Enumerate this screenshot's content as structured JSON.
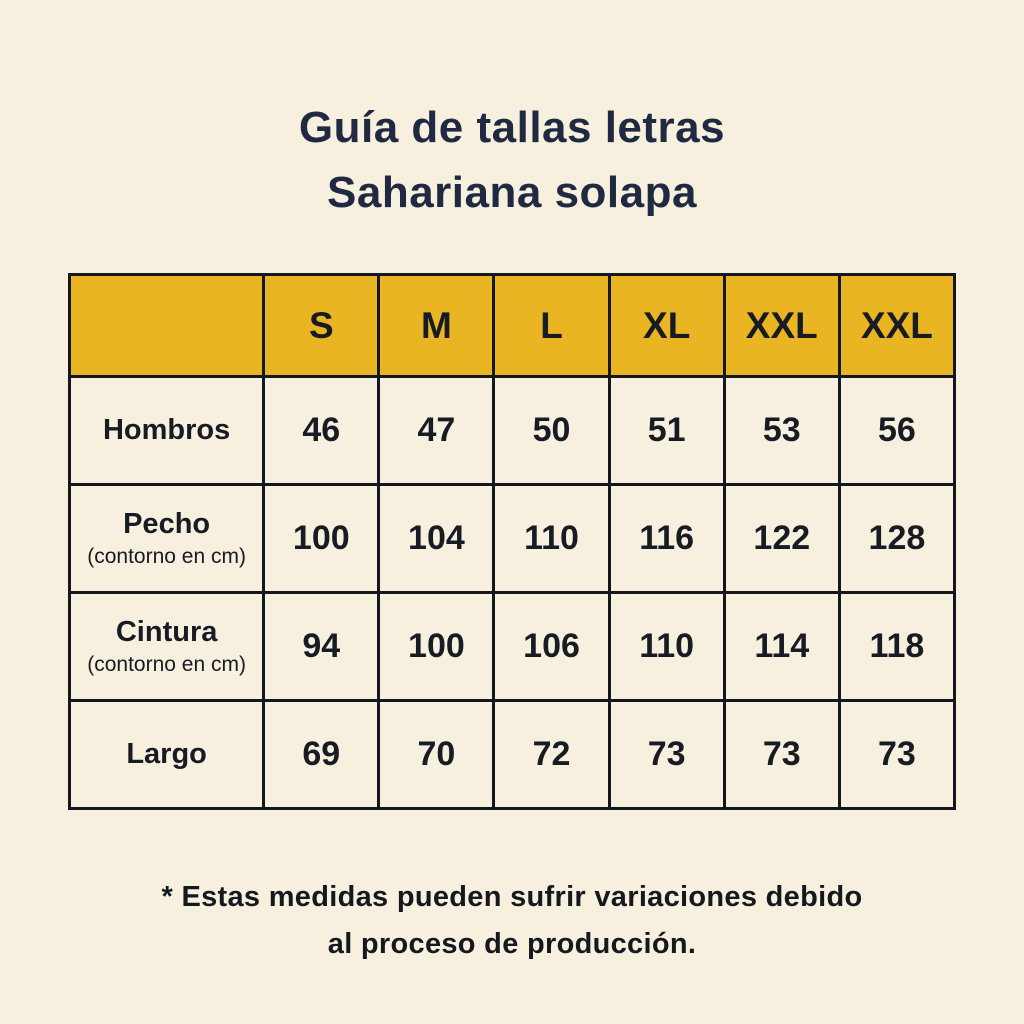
{
  "header": {
    "title_line1": "Guía de tallas letras",
    "title_line2": "Sahariana solapa"
  },
  "table": {
    "header_bg_color": "#e9b522",
    "border_color": "#14171d",
    "background_color": "#f8f0de",
    "title_color": "#1f2a42",
    "columns": [
      "",
      "S",
      "M",
      "L",
      "XL",
      "XXL",
      "XXL"
    ],
    "rows": [
      {
        "label": "Hombros",
        "sublabel": "",
        "values": [
          "46",
          "47",
          "50",
          "51",
          "53",
          "56"
        ]
      },
      {
        "label": "Pecho",
        "sublabel": "(contorno en cm)",
        "values": [
          "100",
          "104",
          "110",
          "116",
          "122",
          "128"
        ]
      },
      {
        "label": "Cintura",
        "sublabel": "(contorno en cm)",
        "values": [
          "94",
          "100",
          "106",
          "110",
          "114",
          "118"
        ]
      },
      {
        "label": "Largo",
        "sublabel": "",
        "values": [
          "69",
          "70",
          "72",
          "73",
          "73",
          "73"
        ]
      }
    ]
  },
  "footer": {
    "note_line1": "* Estas medidas pueden sufrir variaciones debido",
    "note_line2": "al proceso de producción."
  },
  "chart_data": {
    "type": "table",
    "title": "Guía de tallas letras Sahariana solapa",
    "columns": [
      "",
      "S",
      "M",
      "L",
      "XL",
      "XXL",
      "XXL"
    ],
    "rows": [
      [
        "Hombros",
        46,
        47,
        50,
        51,
        53,
        56
      ],
      [
        "Pecho (contorno en cm)",
        100,
        104,
        110,
        116,
        122,
        128
      ],
      [
        "Cintura (contorno en cm)",
        94,
        100,
        106,
        110,
        114,
        118
      ],
      [
        "Largo",
        69,
        70,
        72,
        73,
        73,
        73
      ]
    ],
    "note": "* Estas medidas pueden sufrir variaciones debido al proceso de producción."
  }
}
